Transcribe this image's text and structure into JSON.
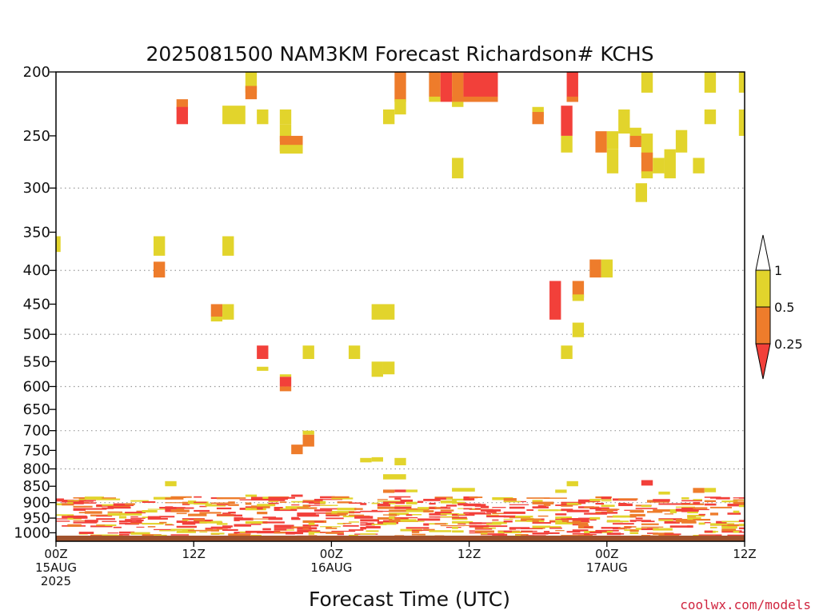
{
  "chart_data": {
    "type": "heatmap",
    "title": "2025081500 NAM3KM Forecast Richardson# KCHS",
    "xlabel": "Forecast Time (UTC)",
    "ylabel": "",
    "y_scale": "log",
    "y_inverted": true,
    "ylim": [
      1030,
      200
    ],
    "xlim_hours": [
      0,
      60
    ],
    "y_ticks": [
      200,
      250,
      300,
      350,
      400,
      450,
      500,
      550,
      600,
      650,
      700,
      750,
      800,
      850,
      900,
      950,
      1000
    ],
    "y_grid": [
      300,
      400,
      500,
      600,
      700,
      800,
      900
    ],
    "x_ticks": [
      {
        "h": 0,
        "lines": [
          "00Z",
          "15AUG",
          "2025"
        ]
      },
      {
        "h": 12,
        "lines": [
          "12Z"
        ]
      },
      {
        "h": 24,
        "lines": [
          "00Z",
          "16AUG"
        ]
      },
      {
        "h": 36,
        "lines": [
          "12Z"
        ]
      },
      {
        "h": 48,
        "lines": [
          "00Z",
          "17AUG"
        ]
      },
      {
        "h": 60,
        "lines": [
          "12Z"
        ]
      }
    ],
    "colorbar": {
      "labels": [
        "1",
        "0.5",
        "0.25"
      ],
      "bins": [
        {
          "label": "< 0.25",
          "color": "#f2403a"
        },
        {
          "label": "0.25 - 0.5",
          "color": "#ee7c2b"
        },
        {
          "label": "0.5 - 1",
          "color": "#e2d42c"
        }
      ]
    },
    "surface_color": "#a0522d",
    "cells": [
      [
        16.5,
        17.5,
        200,
        215,
        "y"
      ],
      [
        16.5,
        17.5,
        210,
        220,
        "o"
      ],
      [
        17.5,
        18.5,
        228,
        240,
        "y"
      ],
      [
        14.5,
        16.5,
        225,
        240,
        "y"
      ],
      [
        10.5,
        11.5,
        220,
        228,
        "o"
      ],
      [
        10.5,
        11.5,
        226,
        240,
        "r"
      ],
      [
        19.5,
        20.5,
        228,
        240,
        "y"
      ],
      [
        19.5,
        20.5,
        240,
        255,
        "y"
      ],
      [
        19.5,
        21.5,
        250,
        264,
        "o"
      ],
      [
        19.5,
        21.5,
        258,
        266,
        "y"
      ],
      [
        29.5,
        30.5,
        200,
        222,
        "o"
      ],
      [
        29.5,
        30.5,
        220,
        232,
        "y"
      ],
      [
        28.5,
        29.5,
        228,
        240,
        "y"
      ],
      [
        32.5,
        33.5,
        200,
        220,
        "o"
      ],
      [
        32.5,
        33.5,
        218,
        222,
        "y"
      ],
      [
        33.5,
        34.5,
        200,
        222,
        "r"
      ],
      [
        34.5,
        35.5,
        200,
        222,
        "o"
      ],
      [
        35.5,
        38.5,
        200,
        222,
        "r"
      ],
      [
        34.5,
        38.5,
        218,
        222,
        "o"
      ],
      [
        34.5,
        35.5,
        222,
        226,
        "y"
      ],
      [
        34.5,
        35.5,
        270,
        290,
        "y"
      ],
      [
        41.5,
        42.5,
        226,
        234,
        "y"
      ],
      [
        41.5,
        42.5,
        230,
        240,
        "o"
      ],
      [
        44.5,
        45.5,
        200,
        222,
        "r"
      ],
      [
        44.5,
        45.5,
        218,
        222,
        "o"
      ],
      [
        44,
        45,
        225,
        250,
        "r"
      ],
      [
        44,
        45,
        250,
        265,
        "y"
      ],
      [
        47,
        48,
        246,
        265,
        "o"
      ],
      [
        48,
        49,
        246,
        262,
        "y"
      ],
      [
        48,
        49,
        262,
        285,
        "y"
      ],
      [
        49,
        50,
        228,
        248,
        "y"
      ],
      [
        50,
        51,
        243,
        256,
        "y"
      ],
      [
        50,
        51,
        250,
        260,
        "o"
      ],
      [
        51,
        52,
        248,
        270,
        "y"
      ],
      [
        51,
        52,
        265,
        285,
        "o"
      ],
      [
        51,
        52,
        283,
        290,
        "y"
      ],
      [
        52,
        53,
        270,
        285,
        "y"
      ],
      [
        53,
        54,
        262,
        290,
        "y"
      ],
      [
        54,
        55,
        245,
        265,
        "y"
      ],
      [
        55.5,
        56.5,
        270,
        285,
        "y"
      ],
      [
        56.5,
        57.5,
        200,
        215,
        "y"
      ],
      [
        56.5,
        57.5,
        228,
        240,
        "y"
      ],
      [
        59.5,
        60,
        200,
        215,
        "y"
      ],
      [
        59.5,
        60,
        228,
        250,
        "y"
      ],
      [
        50.5,
        51.5,
        295,
        315,
        "y"
      ],
      [
        51,
        52,
        200,
        215,
        "y"
      ],
      [
        0,
        0.4,
        355,
        375,
        "y"
      ],
      [
        8.5,
        9.5,
        355,
        380,
        "y"
      ],
      [
        14.5,
        15.5,
        355,
        380,
        "y"
      ],
      [
        8.5,
        9.5,
        388,
        410,
        "o"
      ],
      [
        46.5,
        47.5,
        385,
        410,
        "o"
      ],
      [
        47.5,
        48.5,
        385,
        410,
        "y"
      ],
      [
        45,
        46,
        415,
        440,
        "o"
      ],
      [
        45,
        46,
        435,
        445,
        "y"
      ],
      [
        43,
        44,
        415,
        475,
        "r"
      ],
      [
        13.5,
        14.5,
        450,
        470,
        "o"
      ],
      [
        13.5,
        14.5,
        470,
        478,
        "y"
      ],
      [
        14.5,
        15.5,
        450,
        475,
        "y"
      ],
      [
        27.5,
        29.5,
        450,
        475,
        "y"
      ],
      [
        45,
        46,
        480,
        505,
        "y"
      ],
      [
        44,
        45,
        520,
        545,
        "y"
      ],
      [
        17.5,
        18.5,
        520,
        545,
        "r"
      ],
      [
        17.5,
        18.5,
        560,
        568,
        "y"
      ],
      [
        21.5,
        22.5,
        520,
        545,
        "y"
      ],
      [
        25.5,
        26.5,
        520,
        545,
        "y"
      ],
      [
        27.5,
        28.5,
        550,
        580,
        "y"
      ],
      [
        28.5,
        29.5,
        550,
        575,
        "y"
      ],
      [
        19.5,
        20.5,
        575,
        580,
        "y"
      ],
      [
        19.5,
        20.5,
        580,
        600,
        "r"
      ],
      [
        19.5,
        20.5,
        600,
        610,
        "o"
      ],
      [
        21.5,
        22.5,
        700,
        710,
        "y"
      ],
      [
        21.5,
        22.5,
        710,
        740,
        "o"
      ],
      [
        20.5,
        21.5,
        735,
        760,
        "o"
      ],
      [
        26.5,
        27.5,
        770,
        782,
        "y"
      ],
      [
        27.5,
        28.5,
        768,
        780,
        "y"
      ],
      [
        29.5,
        30.5,
        770,
        790,
        "y"
      ],
      [
        28.5,
        30.5,
        815,
        830,
        "y"
      ],
      [
        9.5,
        10.5,
        835,
        850,
        "y"
      ],
      [
        44.5,
        45.5,
        835,
        850,
        "y"
      ],
      [
        28.5,
        29.5,
        860,
        870,
        "o"
      ],
      [
        29.5,
        30.5,
        860,
        868,
        "r"
      ],
      [
        30.5,
        31.5,
        860,
        868,
        "y"
      ],
      [
        43.5,
        44.5,
        860,
        870,
        "y"
      ],
      [
        51,
        52,
        832,
        848,
        "r"
      ],
      [
        52.5,
        53.5,
        866,
        875,
        "y"
      ],
      [
        55.5,
        56.5,
        855,
        870,
        "o"
      ],
      [
        56.5,
        57.5,
        855,
        868,
        "y"
      ],
      [
        34.5,
        36.5,
        855,
        866,
        "y"
      ],
      [
        16.5,
        17.5,
        875,
        882,
        "y"
      ],
      [
        20.5,
        21.5,
        875,
        882,
        "r"
      ]
    ]
  }
}
